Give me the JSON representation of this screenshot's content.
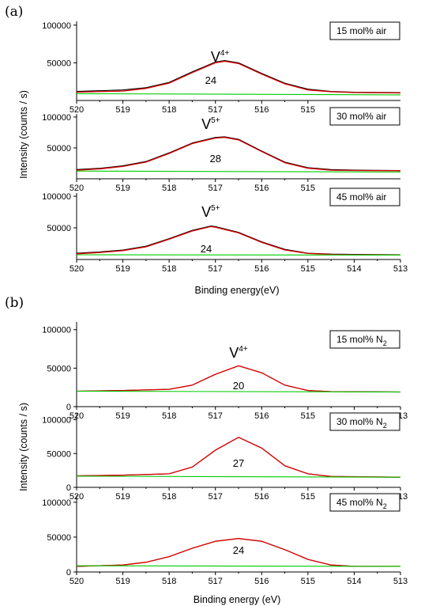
{
  "panel_labels": [
    "(a)",
    "(b)"
  ],
  "figures": [
    {
      "xlabel": "Binding energy(eV)",
      "ylabel": "Intensity (counts / s)"
    },
    {
      "xlabel": "Binding energy (eV)",
      "ylabel": "Intensity (counts / s)"
    }
  ],
  "colors": {
    "measured": "#000000",
    "fit": "#dd0000",
    "background": "#00cc00",
    "axis": "#000000"
  },
  "chart_data": [
    {
      "type": "line",
      "group": "a",
      "legend": "15 mol% air",
      "peak_label": "V",
      "peak_sup": "4+",
      "area_label": "24",
      "xlim": [
        520,
        513
      ],
      "ylim": [
        0,
        105000
      ],
      "x_ticks": [
        "520",
        "519",
        "518",
        "517",
        "516",
        "515"
      ],
      "y_ticks": [
        "50000",
        "100000"
      ],
      "series": [
        {
          "x": [
            520,
            519,
            518.5,
            518,
            517.5,
            517,
            516.8,
            516.5,
            516,
            515.5,
            515,
            514.5,
            514,
            513
          ],
          "y": [
            12000,
            14000,
            17000,
            24000,
            38000,
            51000,
            53000,
            50000,
            36000,
            23000,
            15000,
            12000,
            11000,
            10500
          ]
        },
        {
          "x": [
            520,
            519,
            518.5,
            518,
            517.5,
            517,
            516.8,
            516.5,
            516,
            515.5,
            515,
            514.5,
            514,
            513
          ],
          "y": [
            11000,
            12500,
            16000,
            23000,
            37000,
            50000,
            52000,
            49000,
            35000,
            22000,
            14000,
            11500,
            10500,
            10000
          ]
        },
        {
          "x": [
            520,
            513
          ],
          "y": [
            9000,
            7500
          ]
        }
      ]
    },
    {
      "type": "line",
      "group": "a",
      "legend": "30 mol% air",
      "peak_label": "V",
      "peak_sup": "5+",
      "area_label": "28",
      "xlim": [
        520,
        513
      ],
      "ylim": [
        0,
        105000
      ],
      "x_ticks": [
        "520",
        "519",
        "518",
        "517",
        "516",
        "515"
      ],
      "y_ticks": [
        "50000",
        "100000"
      ],
      "series": [
        {
          "x": [
            520,
            519.5,
            519,
            518.5,
            518,
            517.5,
            517,
            516.8,
            516.5,
            516,
            515.5,
            515,
            514.5,
            514,
            513
          ],
          "y": [
            15000,
            17000,
            21000,
            28000,
            42000,
            58000,
            67000,
            68000,
            64000,
            45000,
            27000,
            18000,
            15000,
            14000,
            13500
          ]
        },
        {
          "x": [
            520,
            519.5,
            519,
            518.5,
            518,
            517.5,
            517,
            516.8,
            516.5,
            516,
            515.5,
            515,
            514.5,
            514,
            513
          ],
          "y": [
            14000,
            16000,
            20000,
            27000,
            41000,
            57000,
            66000,
            67000,
            63000,
            44000,
            26000,
            17000,
            14000,
            13500,
            13000
          ]
        },
        {
          "x": [
            520,
            513
          ],
          "y": [
            12500,
            11000
          ]
        }
      ]
    },
    {
      "type": "line",
      "group": "a",
      "legend": "45 mol% air",
      "peak_label": "V",
      "peak_sup": "5+",
      "area_label": "24",
      "xlim": [
        520,
        513
      ],
      "ylim": [
        0,
        105000
      ],
      "x_ticks": [
        "520",
        "519",
        "518",
        "517",
        "516",
        "515",
        "514",
        "513"
      ],
      "y_ticks": [
        "50000",
        "100000"
      ],
      "series": [
        {
          "x": [
            520,
            519.5,
            519,
            518.5,
            518,
            517.5,
            517.1,
            517,
            516.5,
            516,
            515.5,
            515,
            514.5,
            514,
            513
          ],
          "y": [
            10000,
            12000,
            15000,
            21000,
            33000,
            46000,
            53000,
            52000,
            43000,
            28000,
            16000,
            10000,
            8500,
            8000,
            7500
          ]
        },
        {
          "x": [
            520,
            519.5,
            519,
            518.5,
            518,
            517.5,
            517.1,
            517,
            516.5,
            516,
            515.5,
            515,
            514.5,
            514,
            513
          ],
          "y": [
            9000,
            11000,
            14000,
            20000,
            32000,
            45000,
            52000,
            51000,
            42000,
            27000,
            15000,
            9500,
            8000,
            7500,
            7000
          ]
        },
        {
          "x": [
            520,
            513
          ],
          "y": [
            7500,
            7000
          ]
        }
      ]
    },
    {
      "type": "line",
      "group": "b",
      "legend": "15 mol% N",
      "legend_sub": "2",
      "peak_label": "V",
      "peak_sup": "4+",
      "area_label": "20",
      "xlim": [
        520,
        513
      ],
      "ylim": [
        0,
        110000
      ],
      "x_ticks": [
        "520",
        "519",
        "518",
        "517",
        "516",
        "515",
        "514",
        "513"
      ],
      "y_ticks": [
        "0",
        "50000",
        "100000"
      ],
      "series": [
        {
          "x": [
            520,
            519,
            518,
            517.5,
            517,
            516.5,
            516,
            515.5,
            515,
            514.5,
            513
          ],
          "y": [
            20000,
            21000,
            22500,
            28000,
            42000,
            53000,
            44000,
            28000,
            21000,
            19500,
            19000
          ]
        },
        {
          "x": [
            520,
            519,
            518,
            517.5,
            517,
            516.5,
            516,
            515.5,
            515,
            514.5,
            513
          ],
          "y": [
            20000,
            21000,
            22500,
            28000,
            42000,
            53000,
            44000,
            28000,
            21000,
            19500,
            19000
          ]
        },
        {
          "x": [
            520,
            513
          ],
          "y": [
            20000,
            19000
          ]
        }
      ]
    },
    {
      "type": "line",
      "group": "b",
      "legend": "30 mol% N",
      "legend_sub": "2",
      "peak_label": "",
      "peak_sup": "",
      "area_label": "27",
      "xlim": [
        520,
        513
      ],
      "ylim": [
        0,
        110000
      ],
      "x_ticks": [
        "520",
        "519",
        "518",
        "517",
        "516",
        "515",
        "514",
        "513"
      ],
      "y_ticks": [
        "0",
        "50000",
        "100000"
      ],
      "series": [
        {
          "x": [
            520,
            519,
            518,
            517.5,
            517,
            516.5,
            516,
            515.5,
            515,
            514.5,
            513
          ],
          "y": [
            17000,
            18000,
            20000,
            30000,
            55000,
            74000,
            58000,
            32000,
            20000,
            16000,
            15000
          ]
        },
        {
          "x": [
            520,
            519,
            518,
            517.5,
            517,
            516.5,
            516,
            515.5,
            515,
            514.5,
            513
          ],
          "y": [
            17000,
            18000,
            20000,
            30000,
            55000,
            74000,
            58000,
            32000,
            20000,
            16000,
            15000
          ]
        },
        {
          "x": [
            520,
            513
          ],
          "y": [
            16500,
            15000
          ]
        }
      ]
    },
    {
      "type": "line",
      "group": "b",
      "legend": "45 mol% N",
      "legend_sub": "2",
      "peak_label": "",
      "peak_sup": "",
      "area_label": "24",
      "xlim": [
        520,
        513
      ],
      "ylim": [
        0,
        110000
      ],
      "x_ticks": [
        "520",
        "519",
        "518",
        "517",
        "516",
        "515",
        "514",
        "513"
      ],
      "y_ticks": [
        "0",
        "50000",
        "100000"
      ],
      "series": [
        {
          "x": [
            520,
            519,
            518.5,
            518,
            517.5,
            517,
            516.5,
            516,
            515.5,
            515,
            514.5,
            514,
            513
          ],
          "y": [
            8000,
            10000,
            14000,
            22000,
            34000,
            44000,
            48000,
            44000,
            32000,
            18000,
            10000,
            8000,
            8000
          ]
        },
        {
          "x": [
            520,
            519,
            518.5,
            518,
            517.5,
            517,
            516.5,
            516,
            515.5,
            515,
            514.5,
            514,
            513
          ],
          "y": [
            8000,
            10000,
            14000,
            22000,
            34000,
            44000,
            48000,
            44000,
            32000,
            18000,
            10000,
            8000,
            8000
          ]
        },
        {
          "x": [
            520,
            513
          ],
          "y": [
            9000,
            8000
          ]
        }
      ]
    }
  ]
}
